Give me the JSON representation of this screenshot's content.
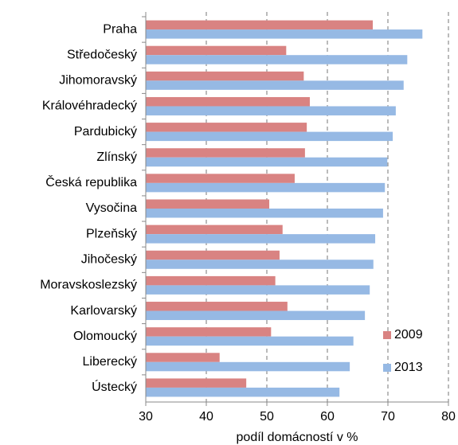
{
  "chart_data": {
    "type": "barh",
    "xlabel": "podíl domácností v %",
    "categories": [
      "Praha",
      "Středočeský",
      "Jihomoravský",
      "Královéhradecký",
      "Pardubický",
      "Zlínský",
      "Česká republika",
      "Vysočina",
      "Plzeňský",
      "Jihočeský",
      "Moravskoslezský",
      "Karlovarský",
      "Olomoucký",
      "Liberecký",
      "Ústecký"
    ],
    "series": [
      {
        "name": "2009",
        "color": "#d98382",
        "values": [
          67.5,
          53.2,
          56.1,
          57.1,
          56.6,
          56.3,
          54.6,
          50.4,
          52.6,
          52.1,
          51.4,
          53.4,
          50.7,
          42.2,
          46.6
        ]
      },
      {
        "name": "2013",
        "color": "#96b9e4",
        "values": [
          75.7,
          73.2,
          72.6,
          71.3,
          70.8,
          69.9,
          69.5,
          69.2,
          67.9,
          67.6,
          67.0,
          66.2,
          64.3,
          63.7,
          62.0
        ]
      }
    ],
    "xlim": [
      30,
      80
    ],
    "xticks": [
      30,
      40,
      50,
      60,
      70,
      80
    ],
    "grid": true,
    "legend": "lower right"
  }
}
